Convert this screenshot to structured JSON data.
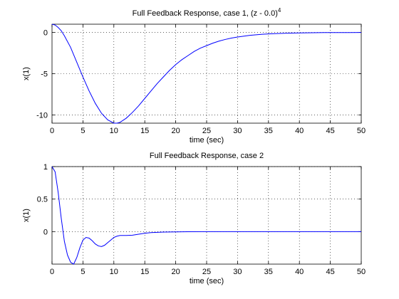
{
  "chart_data": [
    {
      "type": "line",
      "title": "Full Feedback Response, case 1, (z - 0.0)",
      "title_superscript": "4",
      "xlabel": "time (sec)",
      "ylabel": "x(1)",
      "xlim": [
        0,
        50
      ],
      "ylim": [
        -11,
        1
      ],
      "xticks": [
        0,
        5,
        10,
        15,
        20,
        25,
        30,
        35,
        40,
        45,
        50
      ],
      "yticks": [
        0,
        -5,
        -10
      ],
      "grid": true,
      "series": [
        {
          "color": "#0000ff",
          "x": [
            0,
            0.5,
            1,
            1.5,
            2,
            3,
            4,
            5,
            6,
            7,
            8,
            9,
            10,
            10.5,
            11,
            12,
            13,
            14,
            15,
            16,
            17,
            18,
            19,
            20,
            21,
            22,
            23,
            24,
            25,
            26,
            27,
            28,
            29,
            30,
            32,
            34,
            36,
            38,
            40,
            42,
            44,
            46,
            48,
            50
          ],
          "y": [
            1,
            0.9,
            0.6,
            0.2,
            -0.4,
            -1.8,
            -3.6,
            -5.4,
            -7.1,
            -8.6,
            -9.8,
            -10.6,
            -11,
            -11,
            -10.9,
            -10.4,
            -9.7,
            -8.9,
            -8.0,
            -7.1,
            -6.2,
            -5.4,
            -4.6,
            -3.9,
            -3.3,
            -2.8,
            -2.3,
            -1.9,
            -1.6,
            -1.3,
            -1.05,
            -0.85,
            -0.68,
            -0.55,
            -0.35,
            -0.22,
            -0.14,
            -0.09,
            -0.06,
            -0.04,
            -0.02,
            -0.01,
            -0.01,
            0
          ]
        }
      ]
    },
    {
      "type": "line",
      "title": "Full Feedback Response, case 2",
      "xlabel": "time (sec)",
      "ylabel": "x(1)",
      "xlim": [
        0,
        50
      ],
      "ylim": [
        -0.5,
        1
      ],
      "xticks": [
        0,
        5,
        10,
        15,
        20,
        25,
        30,
        35,
        40,
        45,
        50
      ],
      "yticks": [
        1,
        0.5,
        0
      ],
      "grid": true,
      "series": [
        {
          "color": "#0000ff",
          "x": [
            0,
            0.5,
            1,
            1.5,
            2,
            2.5,
            3,
            3.5,
            4,
            4.5,
            5,
            5.5,
            6,
            6.5,
            7,
            7.5,
            8,
            8.5,
            9,
            9.5,
            10,
            10.5,
            11,
            12,
            13,
            14,
            15,
            16,
            18,
            20,
            22,
            25,
            30,
            35,
            40,
            45,
            50
          ],
          "y": [
            1,
            0.92,
            0.6,
            0.2,
            -0.15,
            -0.36,
            -0.47,
            -0.5,
            -0.4,
            -0.25,
            -0.13,
            -0.09,
            -0.1,
            -0.14,
            -0.19,
            -0.22,
            -0.23,
            -0.21,
            -0.17,
            -0.13,
            -0.09,
            -0.07,
            -0.06,
            -0.06,
            -0.055,
            -0.04,
            -0.025,
            -0.015,
            -0.008,
            -0.004,
            -0.002,
            -0.001,
            0,
            0,
            0,
            0,
            0
          ]
        }
      ]
    }
  ]
}
